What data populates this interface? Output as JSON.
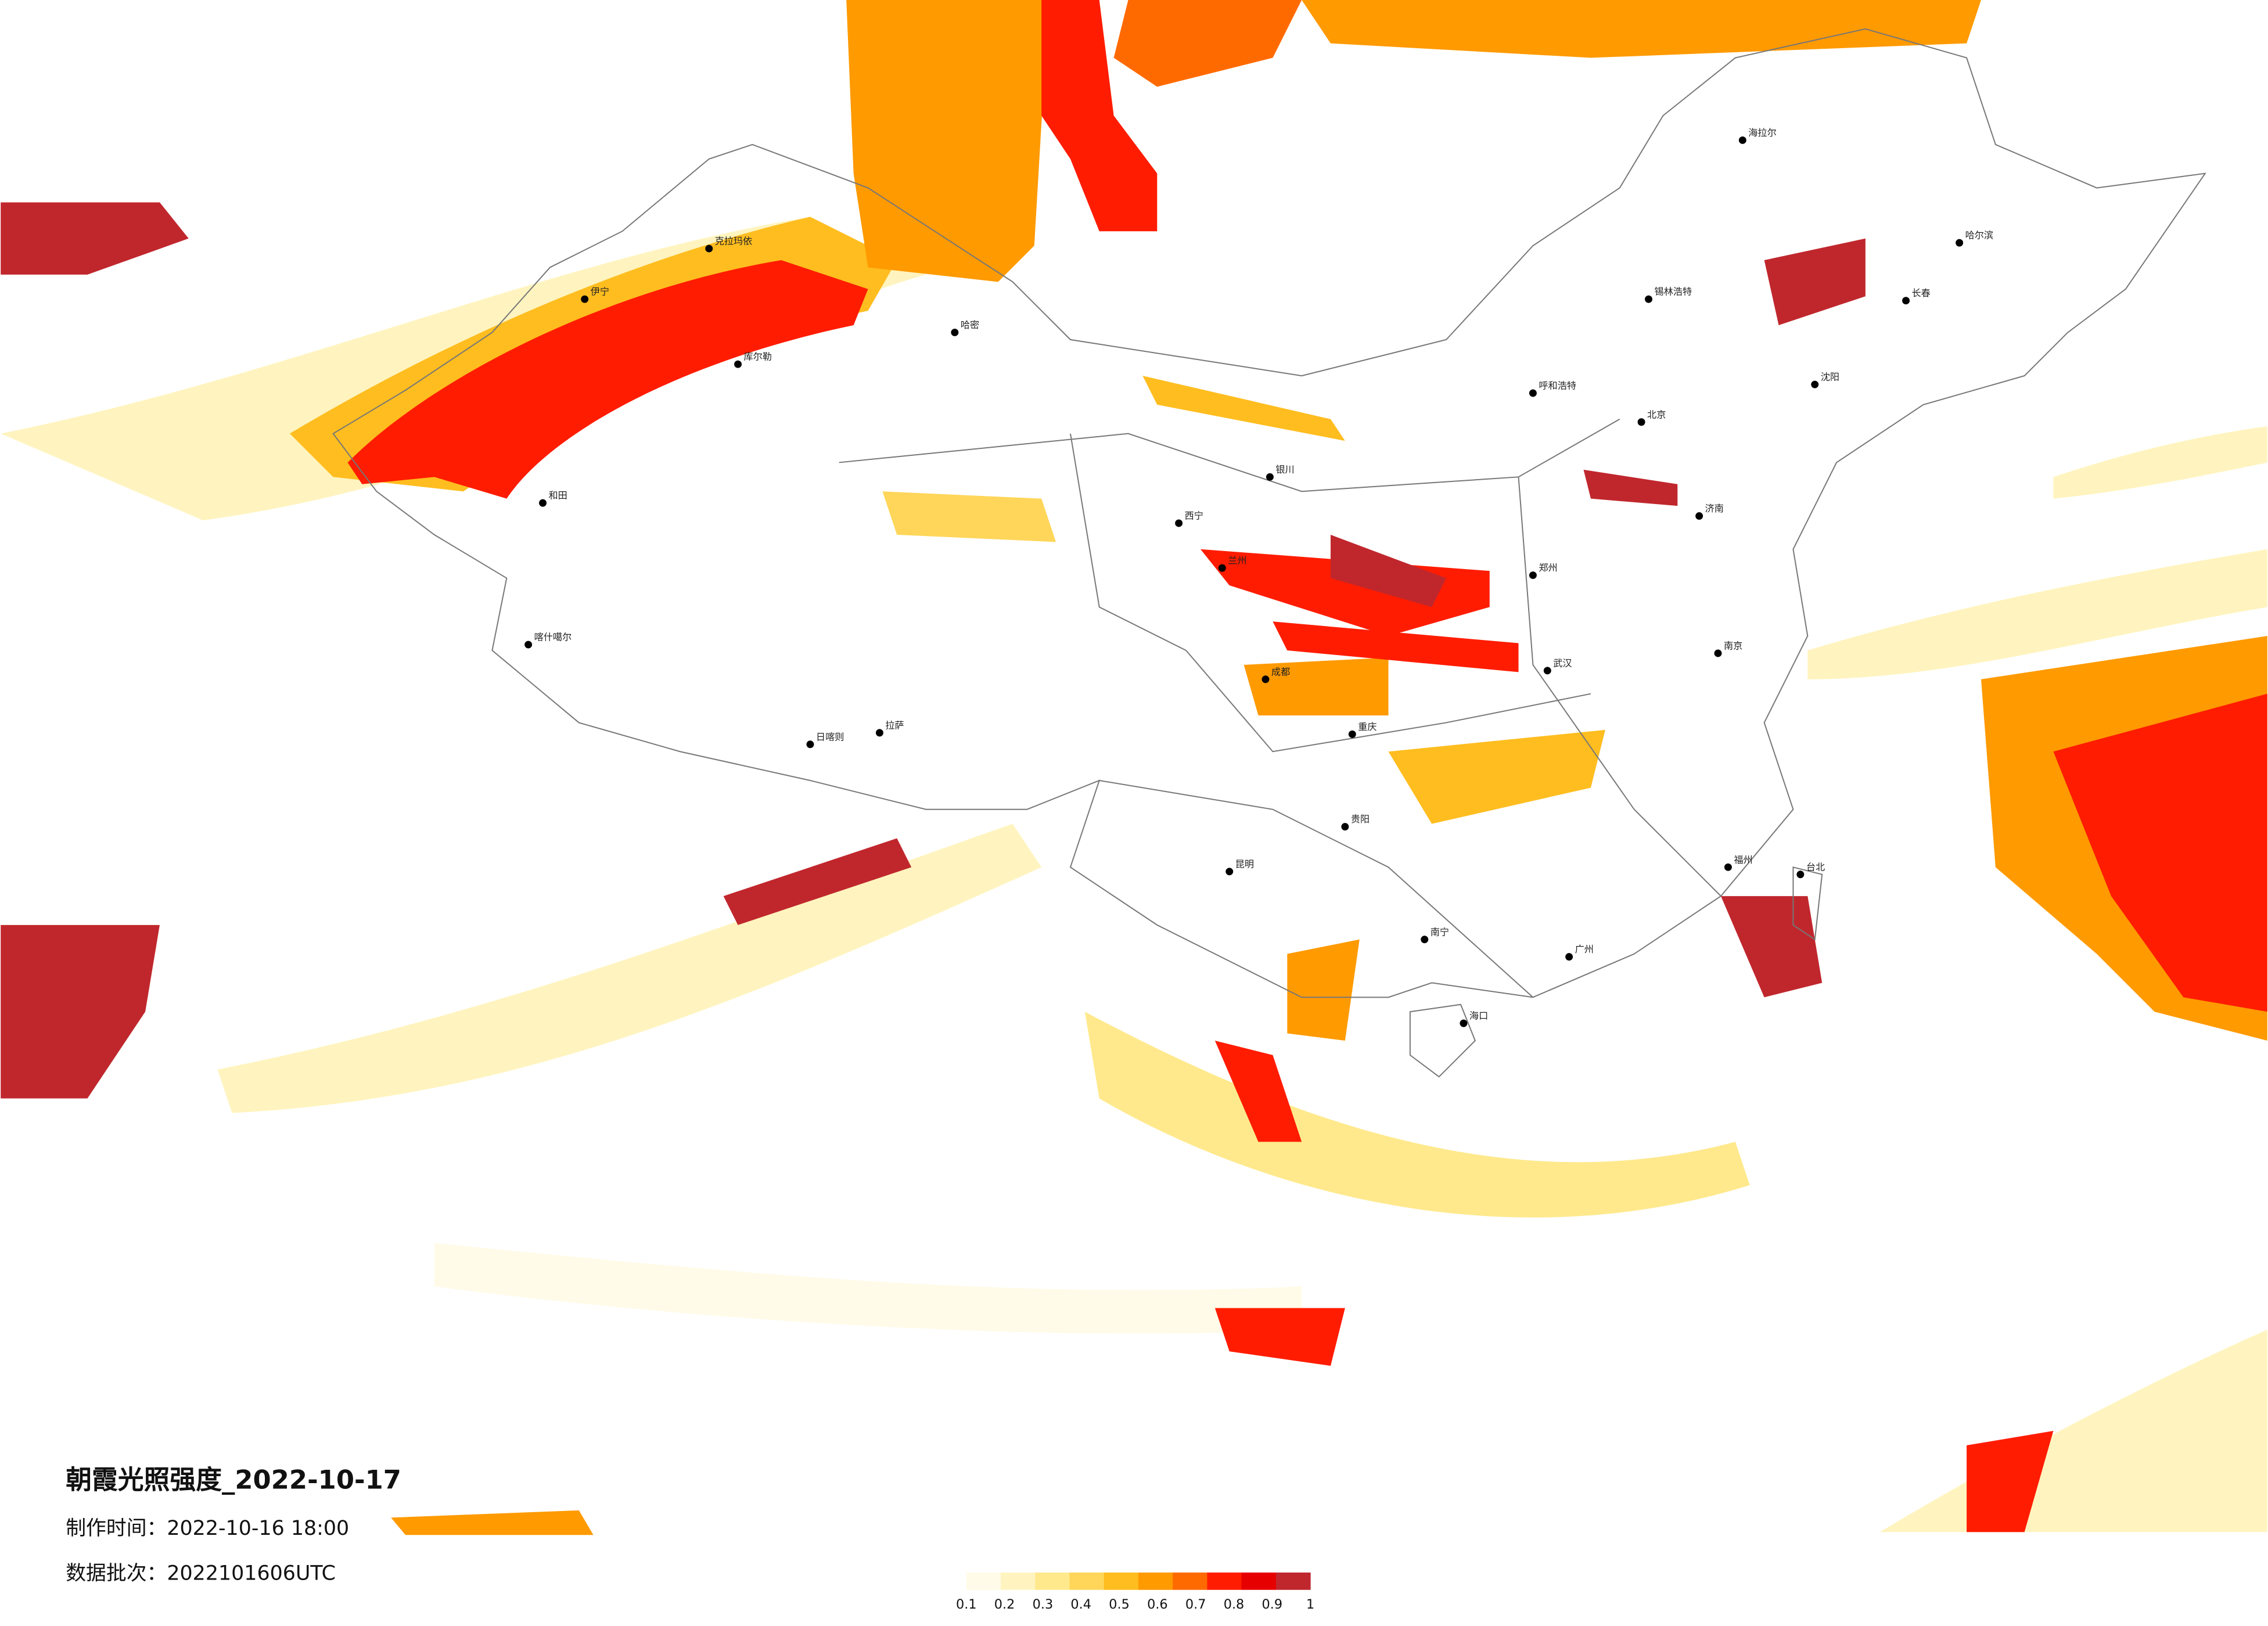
{
  "header": {
    "title": "朝霞光照强度_2022-10-17",
    "made_time": "制作时间：2022-10-16 18:00",
    "batch": "数据批次：2022101606UTC"
  },
  "legend": {
    "colors": [
      "#fffbe8",
      "#fff4bf",
      "#ffe98c",
      "#ffd65a",
      "#ffbd1f",
      "#ff9a00",
      "#ff6a00",
      "#ff1c00",
      "#e60000",
      "#c0272d"
    ],
    "ticks": [
      0.1,
      0.2,
      0.3,
      0.4,
      0.5,
      0.6,
      0.7,
      0.8,
      0.9,
      1
    ]
  },
  "cities": [
    "克拉玛依",
    "伊宁",
    "库尔勒",
    "哈密",
    "和田",
    "喀什噶尔",
    "日喀则",
    "拉萨",
    "西宁",
    "银川",
    "兰州",
    "呼和浩特",
    "北京",
    "锡林浩特",
    "海拉尔",
    "哈尔滨",
    "长春",
    "沈阳",
    "济南",
    "郑州",
    "南京",
    "武汉",
    "成都",
    "重庆",
    "贵阳",
    "昆明",
    "南宁",
    "广州",
    "福州",
    "台北",
    "海口"
  ]
}
